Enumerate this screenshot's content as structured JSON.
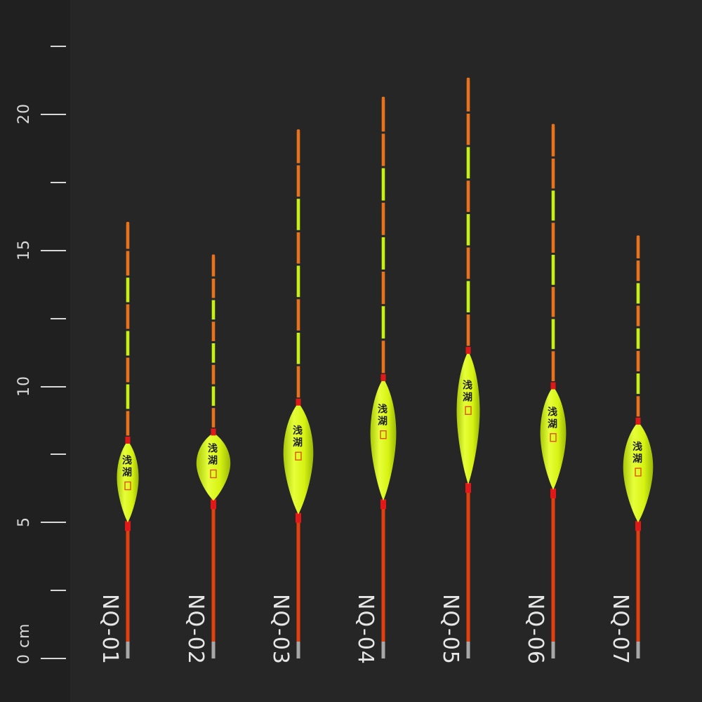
{
  "ruler": {
    "unit_label": "0 cm",
    "labels": [
      "5",
      "10",
      "15",
      "20"
    ]
  },
  "floats": [
    {
      "model": "NQ-01",
      "top_cm": 16.0,
      "body_top_cm": 8.0,
      "body_bottom_cm": 5.0,
      "body_width_cm": 0.8
    },
    {
      "model": "NQ-02",
      "top_cm": 14.8,
      "body_top_cm": 8.3,
      "body_bottom_cm": 5.8,
      "body_width_cm": 1.25
    },
    {
      "model": "NQ-03",
      "top_cm": 19.4,
      "body_top_cm": 9.4,
      "body_bottom_cm": 5.3,
      "body_width_cm": 1.1
    },
    {
      "model": "NQ-04",
      "top_cm": 20.6,
      "body_top_cm": 10.3,
      "body_bottom_cm": 5.8,
      "body_width_cm": 0.95
    },
    {
      "model": "NQ-05",
      "top_cm": 21.3,
      "body_top_cm": 11.3,
      "body_bottom_cm": 6.4,
      "body_width_cm": 0.85
    },
    {
      "model": "NQ-06",
      "top_cm": 19.6,
      "body_top_cm": 10.0,
      "body_bottom_cm": 6.2,
      "body_width_cm": 0.95
    },
    {
      "model": "NQ-07",
      "top_cm": 15.5,
      "body_top_cm": 8.7,
      "body_bottom_cm": 5.0,
      "body_width_cm": 1.1
    }
  ],
  "body_mark_text": "浅湖",
  "colors": {
    "background": "#262626",
    "ruler_background": "#202020",
    "body": "#d6f212",
    "stem": "#e2410f",
    "tip_orange": "#e8731c",
    "tip_green": "#c8f016",
    "tip_dark": "#2a2a2a",
    "collar_red": "#e01818",
    "base_grey": "#a8a8a8"
  }
}
